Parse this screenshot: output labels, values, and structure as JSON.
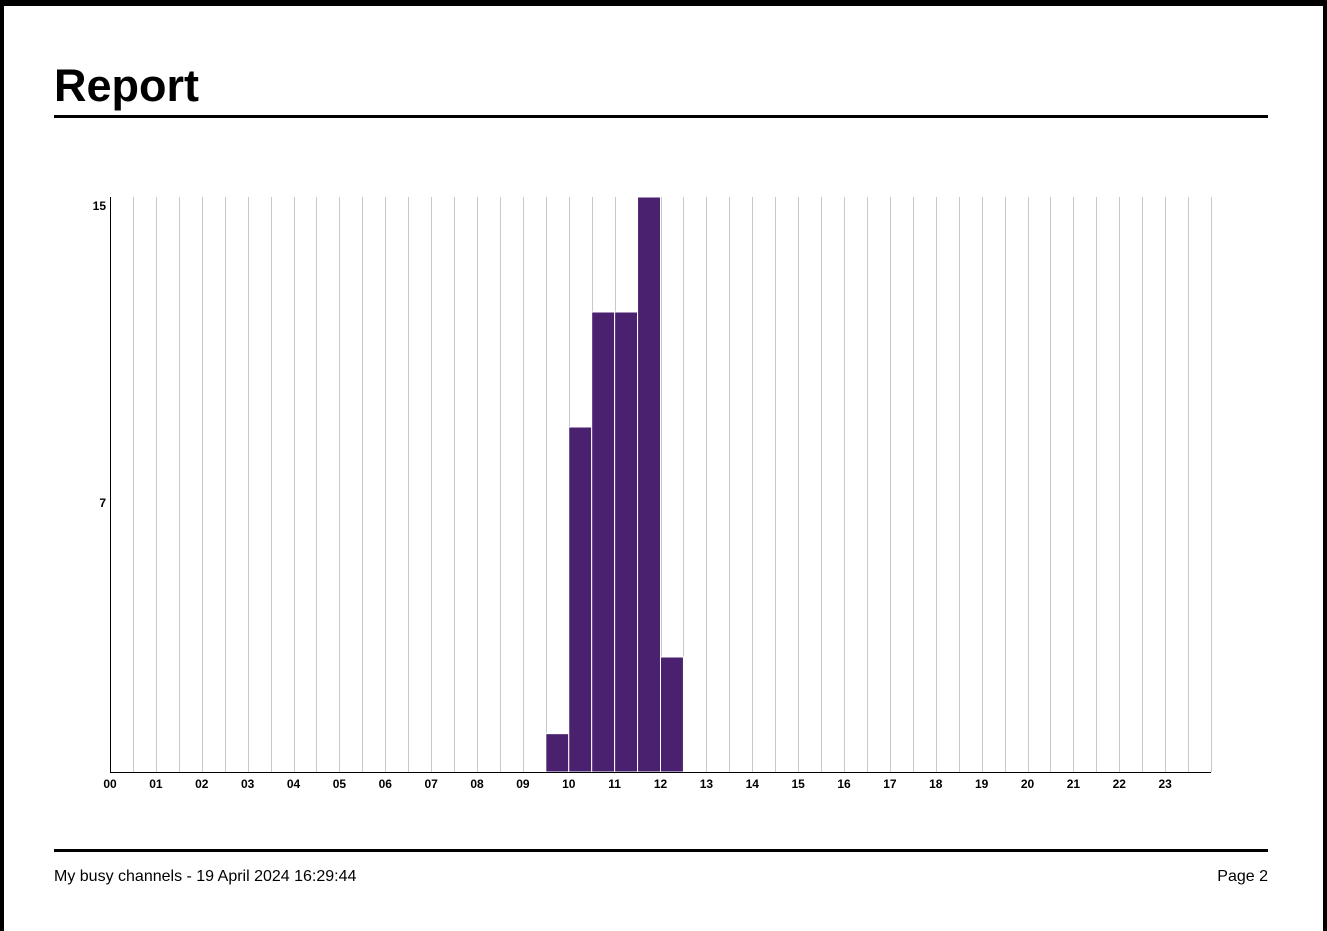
{
  "report": {
    "title": "Report"
  },
  "footer": {
    "left_text": "My busy channels - 19 April 2024 16:29:44",
    "page_label": "Page 2"
  },
  "colors": {
    "bar": "#4a216e",
    "grid": "#c8c8c8",
    "axis": "#000000"
  },
  "chart_data": {
    "type": "bar",
    "title": "",
    "xlabel": "",
    "ylabel": "",
    "categories": [
      "00",
      "01",
      "02",
      "03",
      "04",
      "05",
      "06",
      "07",
      "08",
      "09",
      "10",
      "11",
      "12",
      "13",
      "14",
      "15",
      "16",
      "17",
      "18",
      "19",
      "20",
      "21",
      "22",
      "23"
    ],
    "bins": [
      {
        "x": 9.5,
        "value": 1
      },
      {
        "x": 10.0,
        "value": 9
      },
      {
        "x": 10.5,
        "value": 12
      },
      {
        "x": 11.0,
        "value": 12
      },
      {
        "x": 11.5,
        "value": 15
      },
      {
        "x": 12.0,
        "value": 3
      }
    ],
    "bin_width_hours": 0.5,
    "xlim": [
      0,
      24
    ],
    "ylim": [
      0,
      15
    ],
    "y_ticks": [
      7,
      15
    ],
    "grid": true,
    "legend": "none"
  }
}
